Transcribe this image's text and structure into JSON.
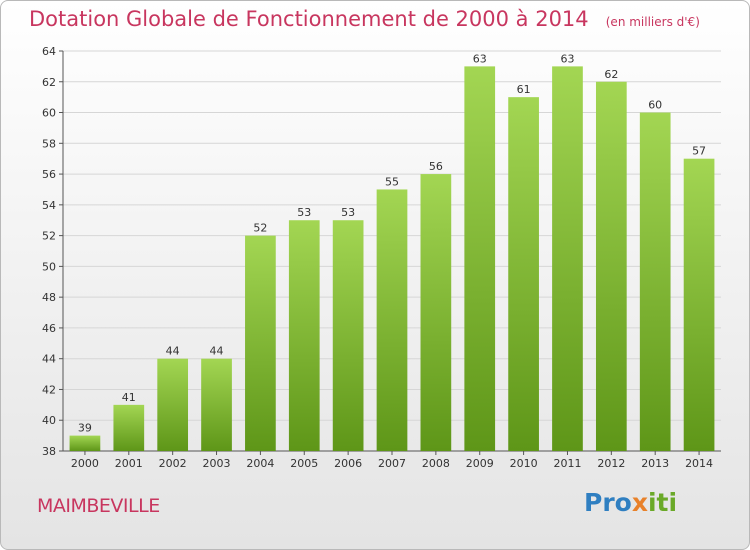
{
  "header": {
    "title": "Dotation Globale de Fonctionnement de 2000 à 2014",
    "unit": "(en milliers d'€)"
  },
  "footer": {
    "commune": "MAIMBEVILLE",
    "logo": "Proxiti"
  },
  "colors": {
    "title": "#c8365f",
    "bar_light": "#a3d653",
    "bar_dark": "#5e9618",
    "grid": "#d6d6d6"
  },
  "chart_data": {
    "type": "bar",
    "categories": [
      "2000",
      "2001",
      "2002",
      "2003",
      "2004",
      "2005",
      "2006",
      "2007",
      "2008",
      "2009",
      "2010",
      "2011",
      "2012",
      "2013",
      "2014"
    ],
    "values": [
      39,
      41,
      44,
      44,
      52,
      53,
      53,
      55,
      56,
      63,
      61,
      63,
      62,
      60,
      57
    ],
    "title": "Dotation Globale de Fonctionnement de 2000 à 2014",
    "subtitle": "(en milliers d'€)",
    "xlabel": "",
    "ylabel": "",
    "ylim": [
      38,
      64
    ],
    "yticks": [
      38,
      40,
      42,
      44,
      46,
      48,
      50,
      52,
      54,
      56,
      58,
      60,
      62,
      64
    ],
    "grid": true,
    "data_labels": true
  }
}
